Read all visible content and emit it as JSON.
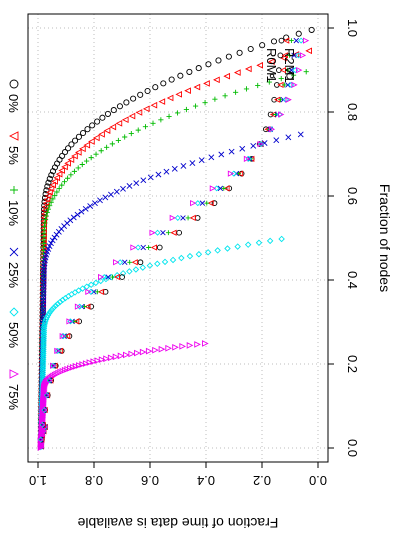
{
  "chart_data": {
    "type": "scatter",
    "rotated": "90-clockwise",
    "title": "",
    "xlabel": "Fraction of nodes",
    "ylabel": "Fraction of time data is available",
    "xlim": [
      0,
      1
    ],
    "ylim": [
      0,
      1
    ],
    "x_ticks": [
      0.0,
      0.2,
      0.4,
      0.6,
      0.8,
      1.0
    ],
    "y_ticks": [
      1.0,
      0.8,
      0.6,
      0.4,
      0.2,
      0.0
    ],
    "x_tick_labels": [
      "0.0",
      "0.2",
      "0.4",
      "0.6",
      "0.8",
      "1.0"
    ],
    "y_tick_labels": [
      "1.0",
      "0.8",
      "0.6",
      "0.4",
      "0.2",
      "0.0"
    ],
    "grid": true,
    "legend_models": [
      {
        "label": "R2M1",
        "symbol": "circle-large",
        "color": "#000000"
      },
      {
        "label": "R0M1",
        "symbol": "circle-small",
        "color": "#000000"
      }
    ],
    "series": [
      {
        "name": "0%",
        "symbol": "circle",
        "color": "#000000",
        "plateau_x": 1.0,
        "plateau_y": 0.99,
        "r2m1_knee": 0.01,
        "r0m1_tail": 0.0
      },
      {
        "name": "5%",
        "symbol": "triangle-up",
        "color": "#ff0000",
        "plateau_x": 0.95,
        "plateau_y": 0.99,
        "r2m1_knee": 0.02,
        "r0m1_tail": 0.02
      },
      {
        "name": "10%",
        "symbol": "plus",
        "color": "#00bb00",
        "plateau_x": 0.9,
        "plateau_y": 0.99,
        "r2m1_knee": 0.03,
        "r0m1_tail": 0.04
      },
      {
        "name": "25%",
        "symbol": "cross",
        "color": "#0000cc",
        "plateau_x": 0.75,
        "plateau_y": 0.99,
        "r2m1_knee": 0.05,
        "r0m1_tail": 0.06
      },
      {
        "name": "50%",
        "symbol": "diamond",
        "color": "#00e5ee",
        "plateau_x": 0.5,
        "plateau_y": 0.99,
        "r2m1_knee": 0.12,
        "r0m1_tail": 0.08
      },
      {
        "name": "75%",
        "symbol": "triangle-down",
        "color": "#ee00ee",
        "plateau_x": 0.25,
        "plateau_y": 0.99,
        "r2m1_knee": 0.4,
        "r0m1_tail": 0.1
      }
    ]
  }
}
